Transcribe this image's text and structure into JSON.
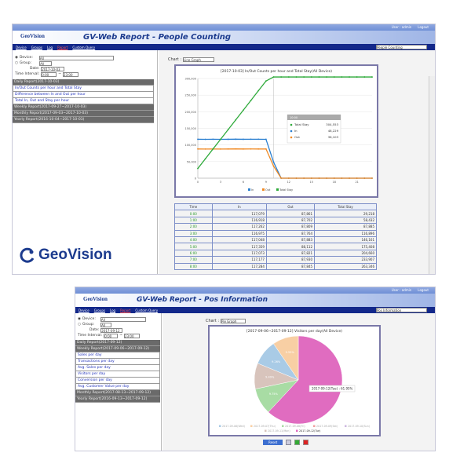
{
  "brand": {
    "logo": "GeoVision",
    "accent": "#1c3b8e",
    "nav_color": "#13288a"
  },
  "common": {
    "user": "User : admin",
    "logout": "Logout",
    "nav": [
      "Device",
      "Groups",
      "Log",
      "Report",
      "Custom Query"
    ],
    "device_label": "Device:",
    "group_label": "Group:",
    "date_label": "Date:",
    "interval_label": "Time Interval:",
    "device_value": "All",
    "group_value": "All",
    "from": "0:00",
    "to": "23:00",
    "chart_label": "Chart :"
  },
  "people": {
    "title": "GV-Web Report - People Counting",
    "mode": "People Counting",
    "date": "2017-10-03",
    "daily": "Daily Report(2017-10-03)",
    "items": [
      "In/Out Counts per hour and Total Stay",
      "Difference between In and Out per hour",
      "Total In, Out and Stay per hour"
    ],
    "weekly": "Weekly Report(2017-09-27~2017-10-03)",
    "monthly": "Monthly Report(2017-09-03~2017-10-03)",
    "yearly": "Yearly Report(2016-10-04~2017-10-03)",
    "chart_type": "Line Graph",
    "table": {
      "headers": [
        "Time",
        "In",
        "Out",
        "Total Stay"
      ],
      "rows": [
        [
          "0:00",
          "117,079",
          "87,861",
          "29,218"
        ],
        [
          "1:00",
          "116,918",
          "87,702",
          "58,432"
        ],
        [
          "2:00",
          "117,262",
          "87,809",
          "87,885"
        ],
        [
          "3:00",
          "116,975",
          "87,764",
          "116,896"
        ],
        [
          "4:00",
          "117,048",
          "87,883",
          "146,161"
        ],
        [
          "5:00",
          "117,359",
          "88,112",
          "175,408"
        ],
        [
          "6:00",
          "117,073",
          "87,821",
          "204,660"
        ],
        [
          "7:00",
          "117,177",
          "87,930",
          "233,907"
        ],
        [
          "8:00",
          "117,284",
          "87,845",
          "263,346"
        ]
      ]
    }
  },
  "pos": {
    "title": "GV-Web Report - Pos Information",
    "mode": "Pos Information",
    "date": "2017-09-12",
    "daily": "Daily Report(2017-09-12)",
    "weekly": "Weekly Report(2017-09-06~2017-09-12)",
    "items": [
      "Sales per day",
      "Transactions per day",
      "Avg. Sales per day",
      "Visitors per day",
      "Conversion per day",
      "Avg. Customer Value per day"
    ],
    "monthly": "Monthly Report(2017-08-13~2017-09-12)",
    "yearly": "Yearly Report(2016-09-13~2017-09-12)",
    "chart_type": "Pie Graph",
    "reset": "Reset"
  },
  "chart_data": [
    {
      "type": "line",
      "title": "[2017-10-03] In/Out Counts per hour and Total Stay(All Device)",
      "x": [
        0,
        1,
        2,
        3,
        4,
        5,
        6,
        7,
        8,
        9,
        10,
        11,
        12,
        13,
        14,
        15,
        16,
        17,
        18,
        19,
        20,
        21,
        22,
        23
      ],
      "xticks": [
        0,
        3,
        6,
        9,
        12,
        15,
        18,
        21
      ],
      "ylim": [
        0,
        300000
      ],
      "yticks": [
        "0",
        "50,000",
        "100,000",
        "150,000",
        "200,000",
        "250,000",
        "300,000"
      ],
      "grid": true,
      "legend": "bottom",
      "series": [
        {
          "name": "In",
          "color": "#2a7fd0",
          "values": [
            117079,
            116918,
            117262,
            116975,
            117048,
            117359,
            117073,
            117177,
            117284,
            117021,
            48229,
            0,
            0,
            0,
            0,
            0,
            0,
            0,
            0,
            0,
            0,
            0,
            0,
            0
          ]
        },
        {
          "name": "Out",
          "color": "#f08a24",
          "values": [
            87861,
            87702,
            87809,
            87764,
            87883,
            88112,
            87821,
            87930,
            87845,
            87940,
            36103,
            0,
            0,
            0,
            0,
            0,
            0,
            0,
            0,
            0,
            0,
            0,
            0,
            0
          ]
        },
        {
          "name": "Total Stay",
          "color": "#2eaa3a",
          "values": [
            29218,
            58432,
            87885,
            116896,
            146161,
            175408,
            204660,
            233907,
            263346,
            292427,
            304553,
            304553,
            304553,
            304553,
            304553,
            304553,
            304553,
            304553,
            304553,
            304553,
            304553,
            304553,
            304553,
            304553
          ]
        }
      ],
      "tooltip": {
        "header": "10:00",
        "rows": [
          [
            "Total Stay",
            "304,553"
          ],
          [
            "In",
            "48,229"
          ],
          [
            "Out",
            "36,103"
          ]
        ]
      }
    },
    {
      "type": "pie",
      "title": "[2017-09-06~2017-09-12] Visitors per day(All Device)",
      "legend": "bottom",
      "slices": [
        {
          "label": "2017-09-06(Wed)",
          "value": 9.26,
          "color": "#a9cbe6"
        },
        {
          "label": "2017-09-07(Thu)",
          "value": 9.55,
          "color": "#f8cfa4"
        },
        {
          "label": "2017-09-08(Fri)",
          "value": 9.75,
          "color": "#a8dca4"
        },
        {
          "label": "2017-09-09(Sat)",
          "value": 0,
          "color": "#f0a0a0"
        },
        {
          "label": "2017-09-10(Sun)",
          "value": 0,
          "color": "#cdb8e0"
        },
        {
          "label": "2017-09-11(Mon)",
          "value": 9.49,
          "color": "#d8c4bc"
        },
        {
          "label": "2017-09-12(Tue)",
          "value": 61.95,
          "color": "#e06cc0"
        }
      ],
      "tooltip": "2017-09-12(Tue) : 61.95%"
    }
  ]
}
